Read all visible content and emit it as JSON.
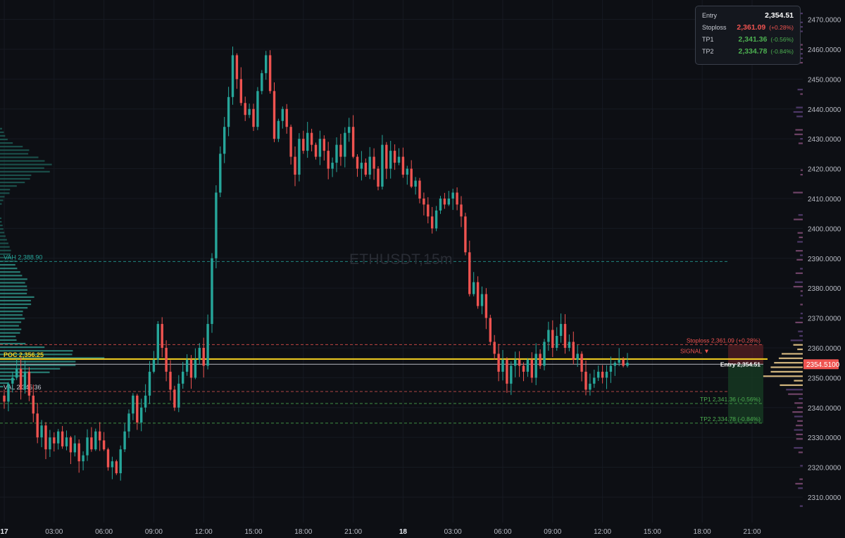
{
  "symbol": "ETHUSDT,15m",
  "info_box": {
    "entry": {
      "label": "Entry",
      "value": "2,354.51"
    },
    "stoploss": {
      "label": "Stoploss",
      "value": "2,361.09",
      "pct": "(+0.28%)"
    },
    "tp1": {
      "label": "TP1",
      "value": "2,341.36",
      "pct": "(-0.56%)"
    },
    "tp2": {
      "label": "TP2",
      "value": "2,334.78",
      "pct": "(-0.84%)"
    }
  },
  "chart_data": {
    "type": "candlestick",
    "title": "ETHUSDT,15m",
    "ylim": [
      2301.5,
      2476.5
    ],
    "y_ticks": [
      "2310.0000",
      "2320.0000",
      "2330.0000",
      "2340.0000",
      "2350.0000",
      "2360.0000",
      "2370.0000",
      "2380.0000",
      "2390.0000",
      "2400.0000",
      "2410.0000",
      "2420.0000",
      "2430.0000",
      "2440.0000",
      "2450.0000",
      "2460.0000",
      "2470.0000"
    ],
    "x_ticks": [
      {
        "label": "17",
        "bold": true,
        "bar": 0
      },
      {
        "label": "03:00",
        "bar": 12
      },
      {
        "label": "06:00",
        "bar": 24
      },
      {
        "label": "09:00",
        "bar": 36
      },
      {
        "label": "12:00",
        "bar": 48
      },
      {
        "label": "15:00",
        "bar": 60
      },
      {
        "label": "18:00",
        "bar": 72
      },
      {
        "label": "21:00",
        "bar": 84
      },
      {
        "label": "18",
        "bold": true,
        "bar": 96
      },
      {
        "label": "03:00",
        "bar": 108
      },
      {
        "label": "06:00",
        "bar": 120
      },
      {
        "label": "09:00",
        "bar": 132
      },
      {
        "label": "12:00",
        "bar": 144
      },
      {
        "label": "15:00",
        "bar": 156
      },
      {
        "label": "18:00",
        "bar": 168
      },
      {
        "label": "21:00",
        "bar": 180
      }
    ],
    "closes": [
      2342,
      2348,
      2350,
      2353,
      2346,
      2352,
      2344,
      2338,
      2330,
      2334,
      2326,
      2330,
      2328,
      2332,
      2327,
      2330,
      2325,
      2328,
      2322,
      2324,
      2330,
      2326,
      2332,
      2329,
      2326,
      2320,
      2322,
      2318,
      2326,
      2332,
      2338,
      2344,
      2335,
      2340,
      2344,
      2352,
      2356,
      2368,
      2360,
      2352,
      2346,
      2340,
      2348,
      2352,
      2356,
      2350,
      2356,
      2360,
      2354,
      2368,
      2390,
      2412,
      2425,
      2434,
      2444,
      2458,
      2450,
      2442,
      2438,
      2440,
      2434,
      2446,
      2452,
      2458,
      2446,
      2430,
      2436,
      2440,
      2434,
      2424,
      2418,
      2430,
      2426,
      2432,
      2428,
      2424,
      2430,
      2426,
      2420,
      2422,
      2428,
      2424,
      2432,
      2434,
      2424,
      2420,
      2422,
      2418,
      2424,
      2420,
      2414,
      2428,
      2420,
      2426,
      2422,
      2424,
      2418,
      2420,
      2414,
      2416,
      2410,
      2408,
      2404,
      2400,
      2406,
      2410,
      2408,
      2410,
      2412,
      2408,
      2404,
      2392,
      2378,
      2382,
      2374,
      2378,
      2370,
      2362,
      2358,
      2352,
      2356,
      2348,
      2354,
      2356,
      2354,
      2352,
      2356,
      2350,
      2358,
      2354,
      2362,
      2366,
      2360,
      2364,
      2368,
      2360,
      2362,
      2356,
      2358,
      2352,
      2346,
      2348,
      2350,
      2352,
      2350,
      2352,
      2354,
      2355,
      2356,
      2354,
      2355
    ],
    "levels": [
      {
        "name": "vah",
        "label": "VAH  2,388.90",
        "value": 2388.9,
        "color": "#26a69a"
      },
      {
        "name": "poc",
        "label": "POC  2,356.25",
        "value": 2356.25,
        "color": "#f5d020"
      },
      {
        "name": "val",
        "label": "VAL 2,345.36",
        "value": 2345.36,
        "color": "#d9534f"
      },
      {
        "name": "stoploss",
        "label": "Stoploss 2,361.09 (+0.28%)",
        "value": 2361.09,
        "color": "#ef5350"
      },
      {
        "name": "entry",
        "label": "Entry 2,354.51",
        "value": 2354.51,
        "color": "#dfe2ea"
      },
      {
        "name": "tp1",
        "label": "TP1 2,341.36 (-0.56%)",
        "value": 2341.36,
        "color": "#4caf50"
      },
      {
        "name": "tp2",
        "label": "TP2 2,334.78 (-0.84%)",
        "value": 2334.78,
        "color": "#4caf50"
      }
    ],
    "signal_label": "SIGNAL ▼",
    "current_price": "2354.5100",
    "current_price_value": 2354.51
  }
}
